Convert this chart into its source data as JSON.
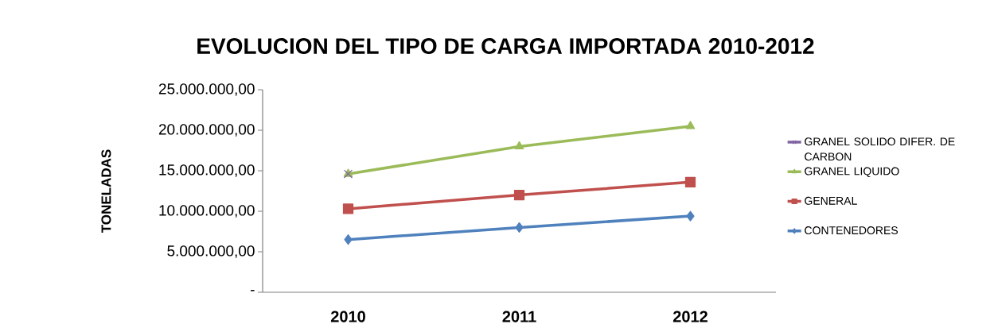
{
  "chart_data": {
    "type": "line",
    "title": "EVOLUCION DEL TIPO DE CARGA IMPORTADA   2010-2012",
    "ylabel": "TONELADAS",
    "categories": [
      "2010",
      "2011",
      "2012"
    ],
    "series": [
      {
        "name": "GRANEL SOLIDO DIFER. DE CARBON",
        "color": "#8064a2",
        "marker": "cross",
        "values": [
          14600000,
          null,
          null
        ]
      },
      {
        "name": "GRANEL LIQUIDO",
        "color": "#9bbb59",
        "marker": "triangle",
        "values": [
          14600000,
          18000000,
          20500000
        ]
      },
      {
        "name": "GENERAL",
        "color": "#c0504d",
        "marker": "square",
        "values": [
          10300000,
          12000000,
          13600000
        ]
      },
      {
        "name": "CONTENEDORES",
        "color": "#4f81bd",
        "marker": "diamond",
        "values": [
          6500000,
          8000000,
          9400000
        ]
      }
    ],
    "ylim": [
      0,
      25000000
    ],
    "yticks": [
      {
        "value": 0,
        "label": "-"
      },
      {
        "value": 5000000,
        "label": "5.000.000,00"
      },
      {
        "value": 10000000,
        "label": "10.000.000,00"
      },
      {
        "value": 15000000,
        "label": "15.000.000,00"
      },
      {
        "value": 20000000,
        "label": "20.000.000,00"
      },
      {
        "value": 25000000,
        "label": "25.000.000,00"
      }
    ],
    "legend": "right",
    "grid": false,
    "line_style": "solid"
  }
}
